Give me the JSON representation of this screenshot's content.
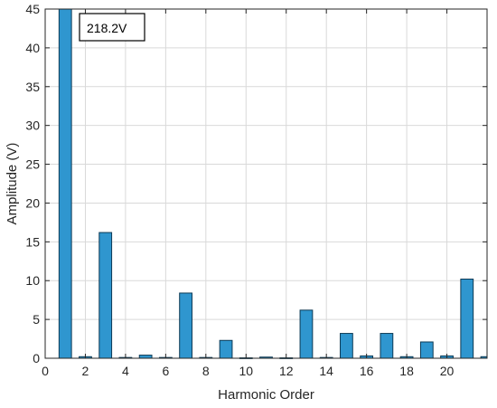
{
  "chart_data": {
    "type": "bar",
    "title": "",
    "xlabel": "Harmonic Order",
    "ylabel": "Amplitude (V)",
    "xlim": [
      0,
      22
    ],
    "ylim": [
      0,
      45
    ],
    "xticks": [
      0,
      2,
      4,
      6,
      8,
      10,
      12,
      14,
      16,
      18,
      20
    ],
    "yticks": [
      0,
      5,
      10,
      15,
      20,
      25,
      30,
      35,
      40,
      45
    ],
    "grid": true,
    "x": [
      1,
      2,
      3,
      4,
      5,
      6,
      7,
      8,
      9,
      10,
      11,
      12,
      13,
      14,
      15,
      16,
      17,
      18,
      19,
      20,
      21,
      22
    ],
    "values": [
      45,
      0.2,
      16.2,
      0.1,
      0.4,
      0.1,
      8.4,
      0.1,
      2.3,
      0.05,
      0.15,
      0.05,
      6.2,
      0.1,
      3.2,
      0.3,
      3.2,
      0.2,
      2.1,
      0.3,
      10.2,
      0.2
    ],
    "annotation": "218.2V",
    "colors": {
      "bar_fill": "#2f96cf",
      "bar_edge": "#0d3a55",
      "grid": "#d9d9d9",
      "axis": "#262626"
    }
  }
}
